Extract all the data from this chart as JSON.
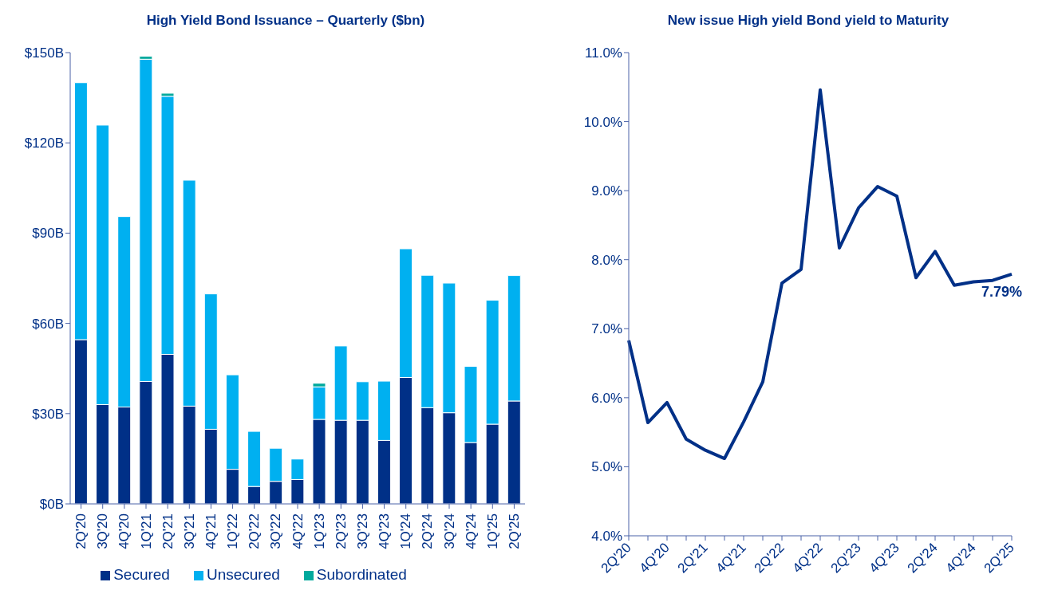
{
  "chart_data": [
    {
      "type": "bar",
      "title": "High Yield Bond Issuance – Quarterly ($bn)",
      "stacked": true,
      "legend": "bottom",
      "grid": false,
      "categories": [
        "2Q'20",
        "3Q'20",
        "4Q'20",
        "1Q'21",
        "2Q'21",
        "3Q'21",
        "4Q'21",
        "1Q'22",
        "2Q'22",
        "3Q'22",
        "4Q'22",
        "1Q'23",
        "2Q'23",
        "3Q'23",
        "4Q'23",
        "1Q'24",
        "2Q'24",
        "3Q'24",
        "4Q'24",
        "1Q'25",
        "2Q'25"
      ],
      "ylim": [
        0,
        150
      ],
      "yticks": [
        {
          "value": 0,
          "label": "$0B"
        },
        {
          "value": 30,
          "label": "$30B"
        },
        {
          "value": 60,
          "label": "$60B"
        },
        {
          "value": 90,
          "label": "$90B"
        },
        {
          "value": 120,
          "label": "$120B"
        },
        {
          "value": 150,
          "label": "$150B"
        }
      ],
      "series": [
        {
          "name": "Secured",
          "color": "#003087",
          "values": [
            54.6,
            33.0,
            32.2,
            40.7,
            49.7,
            32.5,
            24.8,
            11.5,
            5.8,
            7.5,
            8.1,
            28.1,
            27.8,
            27.8,
            21.1,
            42.0,
            32.0,
            30.3,
            20.4,
            26.5,
            34.2
          ]
        },
        {
          "name": "Unsecured",
          "color": "#00b0f0",
          "values": [
            85.4,
            92.9,
            63.3,
            107.1,
            85.8,
            75.1,
            45.0,
            31.4,
            18.3,
            11.0,
            6.8,
            10.8,
            24.7,
            12.8,
            19.7,
            42.8,
            44.0,
            43.1,
            25.3,
            41.2,
            41.7
          ]
        },
        {
          "name": "Subordinated",
          "color": "#00a99d",
          "values": [
            null,
            null,
            null,
            1.0,
            1.0,
            null,
            null,
            null,
            null,
            null,
            null,
            1.2,
            null,
            null,
            null,
            null,
            null,
            null,
            null,
            null,
            null
          ]
        }
      ]
    },
    {
      "type": "line",
      "title": "New issue High yield Bond yield to Maturity",
      "grid": false,
      "marker": "none",
      "line_style": "solid",
      "legend": false,
      "categories": [
        "2Q'20",
        null,
        "4Q'20",
        null,
        "2Q'21",
        null,
        "4Q'21",
        null,
        "2Q'22",
        null,
        "4Q'22",
        null,
        "2Q'23",
        null,
        "4Q'23",
        null,
        "2Q'24",
        null,
        "4Q'24",
        null,
        "2Q'25"
      ],
      "ylim": [
        4,
        11
      ],
      "yticks": [
        {
          "value": 4,
          "label": "4.0%"
        },
        {
          "value": 5,
          "label": "5.0%"
        },
        {
          "value": 6,
          "label": "6.0%"
        },
        {
          "value": 7,
          "label": "7.0%"
        },
        {
          "value": 8,
          "label": "8.0%"
        },
        {
          "value": 9,
          "label": "9.0%"
        },
        {
          "value": 10,
          "label": "10.0%"
        },
        {
          "value": 11,
          "label": "11.0%"
        }
      ],
      "series": [
        {
          "color": "#003087",
          "values": [
            6.83,
            5.64,
            5.93,
            5.4,
            5.24,
            5.12,
            5.65,
            6.23,
            7.66,
            7.86,
            10.46,
            8.17,
            8.75,
            9.06,
            8.92,
            7.74,
            8.12,
            7.63,
            7.68,
            7.7,
            7.79
          ],
          "value_labels": [
            null,
            null,
            null,
            null,
            null,
            null,
            null,
            null,
            null,
            null,
            null,
            null,
            null,
            null,
            null,
            null,
            null,
            null,
            null,
            null,
            "7.79%"
          ]
        }
      ]
    }
  ]
}
